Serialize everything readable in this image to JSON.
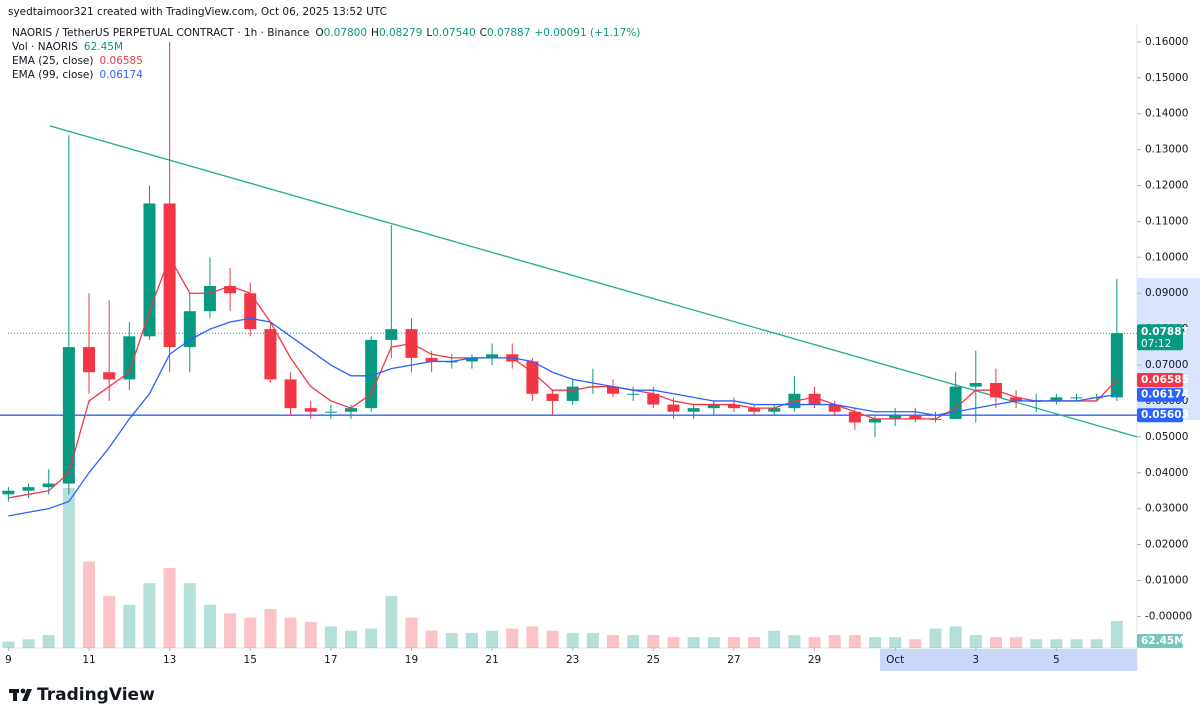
{
  "chart_data": {
    "type": "candlestick",
    "attribution": "syedtaimoor321 created with TradingView.com, Oct 06, 2025 13:52 UTC",
    "symbol": "NAORIS / TetherUS PERPETUAL CONTRACT · 1h · Binance",
    "ohlc": [
      {
        "label": "O",
        "value": "0.07800"
      },
      {
        "label": "H",
        "value": "0.08279"
      },
      {
        "label": "L",
        "value": "0.07540"
      },
      {
        "label": "C",
        "value": "0.07887"
      }
    ],
    "change": "+0.00091 (+1.17%)",
    "up_color": "#089981",
    "down_color": "#f23645",
    "x": [
      9,
      9.5,
      10,
      10.5,
      11,
      11.5,
      12,
      12.5,
      13,
      13.5,
      14,
      14.5,
      15,
      15.5,
      16,
      16.5,
      17,
      17.5,
      18,
      18.5,
      19,
      19.5,
      20,
      20.5,
      21,
      21.5,
      22,
      22.5,
      23,
      23.5,
      24,
      24.5,
      25,
      25.5,
      26,
      26.5,
      27,
      27.5,
      28,
      28.5,
      29,
      29.5,
      30,
      30.5,
      31,
      31.5,
      32,
      32.5,
      33,
      33.5,
      34,
      34.5,
      35,
      35.5,
      36,
      36.5
    ],
    "open": [
      0.034,
      0.035,
      0.036,
      0.037,
      0.075,
      0.068,
      0.066,
      0.078,
      0.115,
      0.075,
      0.085,
      0.092,
      0.09,
      0.08,
      0.066,
      0.058,
      0.057,
      0.057,
      0.058,
      0.077,
      0.08,
      0.072,
      0.071,
      0.071,
      0.072,
      0.073,
      0.071,
      0.062,
      0.06,
      0.064,
      0.064,
      0.062,
      0.062,
      0.059,
      0.057,
      0.058,
      0.059,
      0.058,
      0.057,
      0.058,
      0.062,
      0.059,
      0.057,
      0.054,
      0.055,
      0.056,
      0.055,
      0.055,
      0.064,
      0.065,
      0.061,
      0.06,
      0.06,
      0.061,
      0.061,
      0.061
    ],
    "high": [
      0.036,
      0.037,
      0.041,
      0.134,
      0.09,
      0.088,
      0.082,
      0.12,
      0.16,
      0.09,
      0.1,
      0.097,
      0.093,
      0.082,
      0.068,
      0.06,
      0.059,
      0.059,
      0.078,
      0.109,
      0.083,
      0.074,
      0.073,
      0.073,
      0.076,
      0.076,
      0.072,
      0.063,
      0.066,
      0.069,
      0.066,
      0.064,
      0.064,
      0.061,
      0.059,
      0.06,
      0.061,
      0.059,
      0.059,
      0.067,
      0.064,
      0.06,
      0.058,
      0.056,
      0.058,
      0.058,
      0.057,
      0.068,
      0.074,
      0.069,
      0.063,
      0.062,
      0.062,
      0.062,
      0.062,
      0.094
    ],
    "low": [
      0.032,
      0.033,
      0.034,
      0.034,
      0.062,
      0.06,
      0.063,
      0.077,
      0.068,
      0.068,
      0.083,
      0.085,
      0.078,
      0.065,
      0.056,
      0.055,
      0.055,
      0.055,
      0.057,
      0.072,
      0.068,
      0.068,
      0.069,
      0.069,
      0.07,
      0.069,
      0.06,
      0.056,
      0.059,
      0.062,
      0.061,
      0.06,
      0.058,
      0.055,
      0.055,
      0.056,
      0.057,
      0.056,
      0.056,
      0.057,
      0.058,
      0.056,
      0.052,
      0.05,
      0.053,
      0.054,
      0.054,
      0.055,
      0.054,
      0.058,
      0.058,
      0.057,
      0.059,
      0.06,
      0.06,
      0.06
    ],
    "close": [
      0.035,
      0.036,
      0.037,
      0.075,
      0.068,
      0.066,
      0.078,
      0.115,
      0.075,
      0.085,
      0.092,
      0.09,
      0.08,
      0.066,
      0.058,
      0.057,
      0.057,
      0.058,
      0.077,
      0.08,
      0.072,
      0.071,
      0.071,
      0.072,
      0.073,
      0.071,
      0.062,
      0.06,
      0.064,
      0.064,
      0.062,
      0.062,
      0.059,
      0.057,
      0.058,
      0.059,
      0.058,
      0.057,
      0.058,
      0.062,
      0.059,
      0.057,
      0.054,
      0.055,
      0.056,
      0.055,
      0.055,
      0.064,
      0.065,
      0.061,
      0.06,
      0.06,
      0.061,
      0.061,
      0.061,
      0.07887
    ],
    "series": [
      {
        "name": "EMA (25, close)",
        "color": "#f23645",
        "values": [
          0.033,
          0.034,
          0.035,
          0.04,
          0.06,
          0.064,
          0.068,
          0.085,
          0.1,
          0.09,
          0.09,
          0.092,
          0.09,
          0.082,
          0.072,
          0.064,
          0.06,
          0.058,
          0.062,
          0.075,
          0.076,
          0.073,
          0.072,
          0.072,
          0.072,
          0.072,
          0.068,
          0.063,
          0.063,
          0.064,
          0.064,
          0.063,
          0.062,
          0.06,
          0.059,
          0.059,
          0.059,
          0.058,
          0.058,
          0.06,
          0.061,
          0.059,
          0.057,
          0.055,
          0.055,
          0.055,
          0.055,
          0.058,
          0.063,
          0.063,
          0.061,
          0.06,
          0.06,
          0.06,
          0.06,
          0.06585
        ]
      },
      {
        "name": "EMA (99, close)",
        "color": "#2962ff",
        "values": [
          0.028,
          0.029,
          0.03,
          0.032,
          0.04,
          0.047,
          0.055,
          0.062,
          0.073,
          0.077,
          0.08,
          0.082,
          0.083,
          0.082,
          0.078,
          0.074,
          0.07,
          0.067,
          0.067,
          0.069,
          0.07,
          0.071,
          0.071,
          0.072,
          0.072,
          0.072,
          0.071,
          0.068,
          0.066,
          0.065,
          0.064,
          0.063,
          0.063,
          0.062,
          0.061,
          0.06,
          0.06,
          0.059,
          0.059,
          0.059,
          0.059,
          0.059,
          0.058,
          0.057,
          0.057,
          0.057,
          0.056,
          0.057,
          0.058,
          0.059,
          0.06,
          0.06,
          0.06,
          0.06,
          0.061,
          0.06174
        ]
      }
    ],
    "volume": {
      "name": "Vol · NAORIS",
      "last_label": "62.45M",
      "values": [
        15,
        20,
        30,
        370,
        200,
        120,
        100,
        150,
        185,
        150,
        100,
        80,
        70,
        90,
        70,
        60,
        50,
        40,
        45,
        120,
        70,
        40,
        35,
        35,
        40,
        45,
        50,
        40,
        35,
        35,
        30,
        30,
        30,
        25,
        25,
        25,
        25,
        25,
        40,
        30,
        25,
        30,
        30,
        25,
        25,
        20,
        45,
        50,
        30,
        25,
        25,
        20,
        20,
        20,
        20,
        62.45
      ]
    },
    "hline": {
      "value": 0.05603,
      "color": "#2962ff"
    },
    "trendline": {
      "x": [
        10.03,
        37.0
      ],
      "y": [
        0.1366,
        0.05
      ],
      "color": "#22ab94"
    },
    "countdown": "07:12",
    "brand": "TradingView",
    "grid": false,
    "xlim": [
      8.99,
      37.0
    ],
    "ylim": [
      -0.0088,
      0.1647
    ],
    "xticks": [
      9,
      11,
      13,
      15,
      17,
      19,
      21,
      23,
      25,
      27,
      29,
      {
        "value": 31,
        "label": "Oct"
      },
      {
        "value": 33,
        "label": "3"
      },
      {
        "value": 35,
        "label": "5"
      }
    ],
    "yticks": [
      {
        "value": 0.16,
        "label": "0.16000"
      },
      {
        "value": 0.15,
        "label": "0.15000"
      },
      {
        "value": 0.14,
        "label": "0.14000"
      },
      {
        "value": 0.13,
        "label": "0.13000"
      },
      {
        "value": 0.12,
        "label": "0.12000"
      },
      {
        "value": 0.11,
        "label": "0.11000"
      },
      {
        "value": 0.1,
        "label": "0.10000"
      },
      {
        "value": 0.09,
        "label": "0.09000"
      },
      {
        "value": 0.08,
        "label": "0.08000"
      },
      {
        "value": 0.07,
        "label": "0.07000"
      },
      {
        "value": 0.06,
        "label": "0.06000"
      },
      {
        "value": 0.05,
        "label": "0.05000"
      },
      {
        "value": 0.04,
        "label": "0.04000"
      },
      {
        "value": 0.03,
        "label": "0.03000"
      },
      {
        "value": 0.02,
        "label": "0.02000"
      },
      {
        "value": 0.01,
        "label": "0.01000"
      },
      {
        "value": 0,
        "label": "-0.00000"
      }
    ]
  }
}
